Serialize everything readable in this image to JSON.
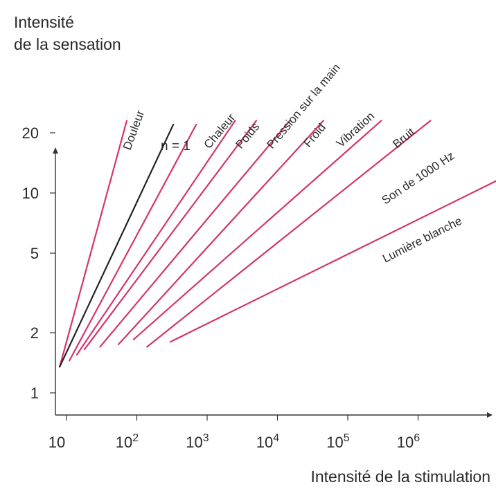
{
  "chart_data": {
    "type": "line",
    "title": "",
    "ylabel_lines": [
      "Intensité",
      "de la sensation"
    ],
    "xlabel": "Intensité de la stimulation",
    "y_scale": "log",
    "x_scale": "log",
    "yticks": [
      {
        "value": 1,
        "label": "1"
      },
      {
        "value": 2,
        "label": "2"
      },
      {
        "value": 5,
        "label": "5"
      },
      {
        "value": 10,
        "label": "10"
      },
      {
        "value": 20,
        "label": "20"
      }
    ],
    "xticks": [
      {
        "value": 10,
        "base": "10",
        "exp": ""
      },
      {
        "value": 100,
        "base": "10",
        "exp": "2"
      },
      {
        "value": 1000,
        "base": "10",
        "exp": "3"
      },
      {
        "value": 10000,
        "base": "10",
        "exp": "4"
      },
      {
        "value": 100000,
        "base": "10",
        "exp": "5"
      },
      {
        "value": 1000000,
        "base": "10",
        "exp": "6"
      }
    ],
    "xlim": [
      6,
      70000000
    ],
    "ylim": [
      0.85,
      30
    ],
    "grid": false,
    "series": [
      {
        "name": "Douleur",
        "color": "#d4336f",
        "x": [
          8,
          72
        ],
        "y": [
          1.35,
          23
        ]
      },
      {
        "name": "n = 1",
        "color": "#222222",
        "x": [
          8,
          330
        ],
        "y": [
          1.35,
          22
        ]
      },
      {
        "name": "Chaleur",
        "color": "#d4336f",
        "x": [
          11,
          700
        ],
        "y": [
          1.45,
          22
        ]
      },
      {
        "name": "Poids",
        "color": "#d4336f",
        "x": [
          14,
          2500
        ],
        "y": [
          1.55,
          23
        ]
      },
      {
        "name": "Pression sur la main",
        "color": "#d4336f",
        "x": [
          18,
          5000
        ],
        "y": [
          1.65,
          23
        ]
      },
      {
        "name": "Froid",
        "color": "#d4336f",
        "x": [
          30,
          15000
        ],
        "y": [
          1.7,
          23
        ]
      },
      {
        "name": "Vibration",
        "color": "#d4336f",
        "x": [
          55,
          45000
        ],
        "y": [
          1.75,
          23
        ]
      },
      {
        "name": "Bruit",
        "color": "#d4336f",
        "x": [
          90,
          300000
        ],
        "y": [
          1.85,
          23
        ]
      },
      {
        "name": "Son de 1000 Hz",
        "color": "#d4336f",
        "x": [
          140,
          1500000
        ],
        "y": [
          1.7,
          23
        ]
      },
      {
        "name": "Lumière blanche",
        "color": "#d4336f",
        "x": [
          300,
          60000000
        ],
        "y": [
          1.8,
          15
        ]
      }
    ]
  }
}
